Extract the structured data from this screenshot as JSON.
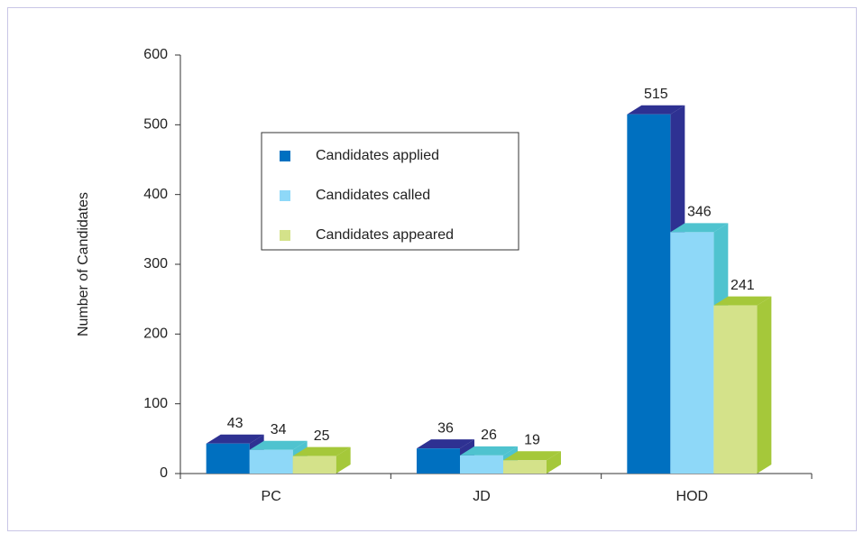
{
  "chart_data": {
    "type": "bar3d",
    "ylabel": "Number of Candidates",
    "categories": [
      "PC",
      "JD",
      "HOD"
    ],
    "series": [
      {
        "name": "Candidates applied",
        "color": "#0070c0",
        "side_color": "#2e3192",
        "values": [
          43,
          36,
          515
        ]
      },
      {
        "name": "Candidates called",
        "color": "#8ed8f8",
        "side_color": "#4fc3cf",
        "values": [
          34,
          26,
          346
        ]
      },
      {
        "name": "Candidates appeared",
        "color": "#d4e28a",
        "side_color": "#a5c83a",
        "values": [
          25,
          19,
          241
        ]
      }
    ],
    "ylim": [
      0,
      600
    ],
    "yticks": [
      0,
      100,
      200,
      300,
      400,
      500,
      600
    ],
    "legend": "upper-left"
  }
}
